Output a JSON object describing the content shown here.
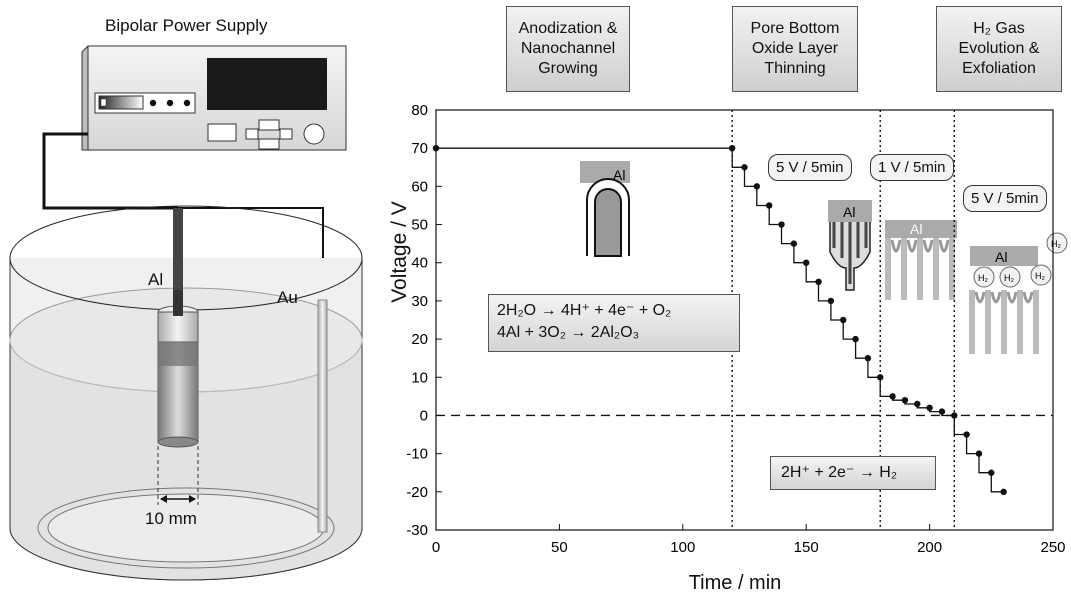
{
  "setup": {
    "power_supply_label": "Bipolar Power Supply",
    "electrode_al_label": "Al",
    "electrode_au_label": "Au",
    "dimension_label": "10 mm"
  },
  "phases": [
    {
      "lines": [
        "Anodization &",
        "Nanochannel",
        "Growing"
      ]
    },
    {
      "lines": [
        "Pore Bottom",
        "Oxide Layer",
        "Thinning"
      ]
    },
    {
      "lines": [
        "H₂ Gas",
        "Evolution &",
        "Exfoliation"
      ]
    }
  ],
  "step_labels": [
    "5 V / 5min",
    "1 V / 5min",
    "5 V / 5min"
  ],
  "reactions": {
    "box1_line1": "2H₂O → 4H⁺ + 4e⁻ + O₂",
    "box1_line2": "4Al + 3O₂ → 2Al₂O₃",
    "box2": "2H⁺ + 2e⁻ → H₂"
  },
  "insets": {
    "al_label": "Al",
    "h2_label": "H₂"
  },
  "chart_data": {
    "type": "line",
    "xlabel": "Time / min",
    "ylabel": "Voltage / V",
    "xlim": [
      0,
      250
    ],
    "ylim": [
      -30,
      80
    ],
    "xticks": [
      0,
      50,
      100,
      150,
      200,
      250
    ],
    "yticks": [
      -30,
      -20,
      -10,
      0,
      10,
      20,
      30,
      40,
      50,
      60,
      70,
      80
    ],
    "zero_line": "dashed",
    "phase_boundaries_x": [
      120,
      180,
      210
    ],
    "series": [
      {
        "x": [
          0,
          120,
          120,
          125,
          125,
          130,
          130,
          135,
          135,
          140,
          140,
          145,
          145,
          150,
          150,
          155,
          155,
          160,
          160,
          165,
          165,
          170,
          170,
          175,
          175,
          180,
          180,
          185,
          185,
          190,
          190,
          195,
          195,
          200,
          200,
          205,
          205,
          210,
          210,
          215,
          215,
          220,
          220,
          225,
          225,
          230
        ],
        "y": [
          70,
          70,
          65,
          65,
          60,
          60,
          55,
          55,
          50,
          50,
          45,
          45,
          40,
          40,
          35,
          35,
          30,
          30,
          25,
          25,
          20,
          20,
          15,
          15,
          10,
          10,
          5,
          5,
          4,
          4,
          3,
          3,
          2,
          2,
          1,
          1,
          0,
          0,
          -5,
          -5,
          -10,
          -10,
          -15,
          -15,
          -20,
          -20
        ]
      }
    ],
    "markers": {
      "x": [
        0,
        120,
        125,
        130,
        135,
        140,
        145,
        150,
        155,
        160,
        165,
        170,
        175,
        180,
        185,
        190,
        195,
        200,
        205,
        210,
        215,
        220,
        225,
        230
      ],
      "y": [
        70,
        70,
        65,
        60,
        55,
        50,
        45,
        40,
        35,
        30,
        25,
        20,
        15,
        10,
        5,
        4,
        3,
        2,
        1,
        0,
        -5,
        -10,
        -15,
        -20
      ]
    }
  }
}
